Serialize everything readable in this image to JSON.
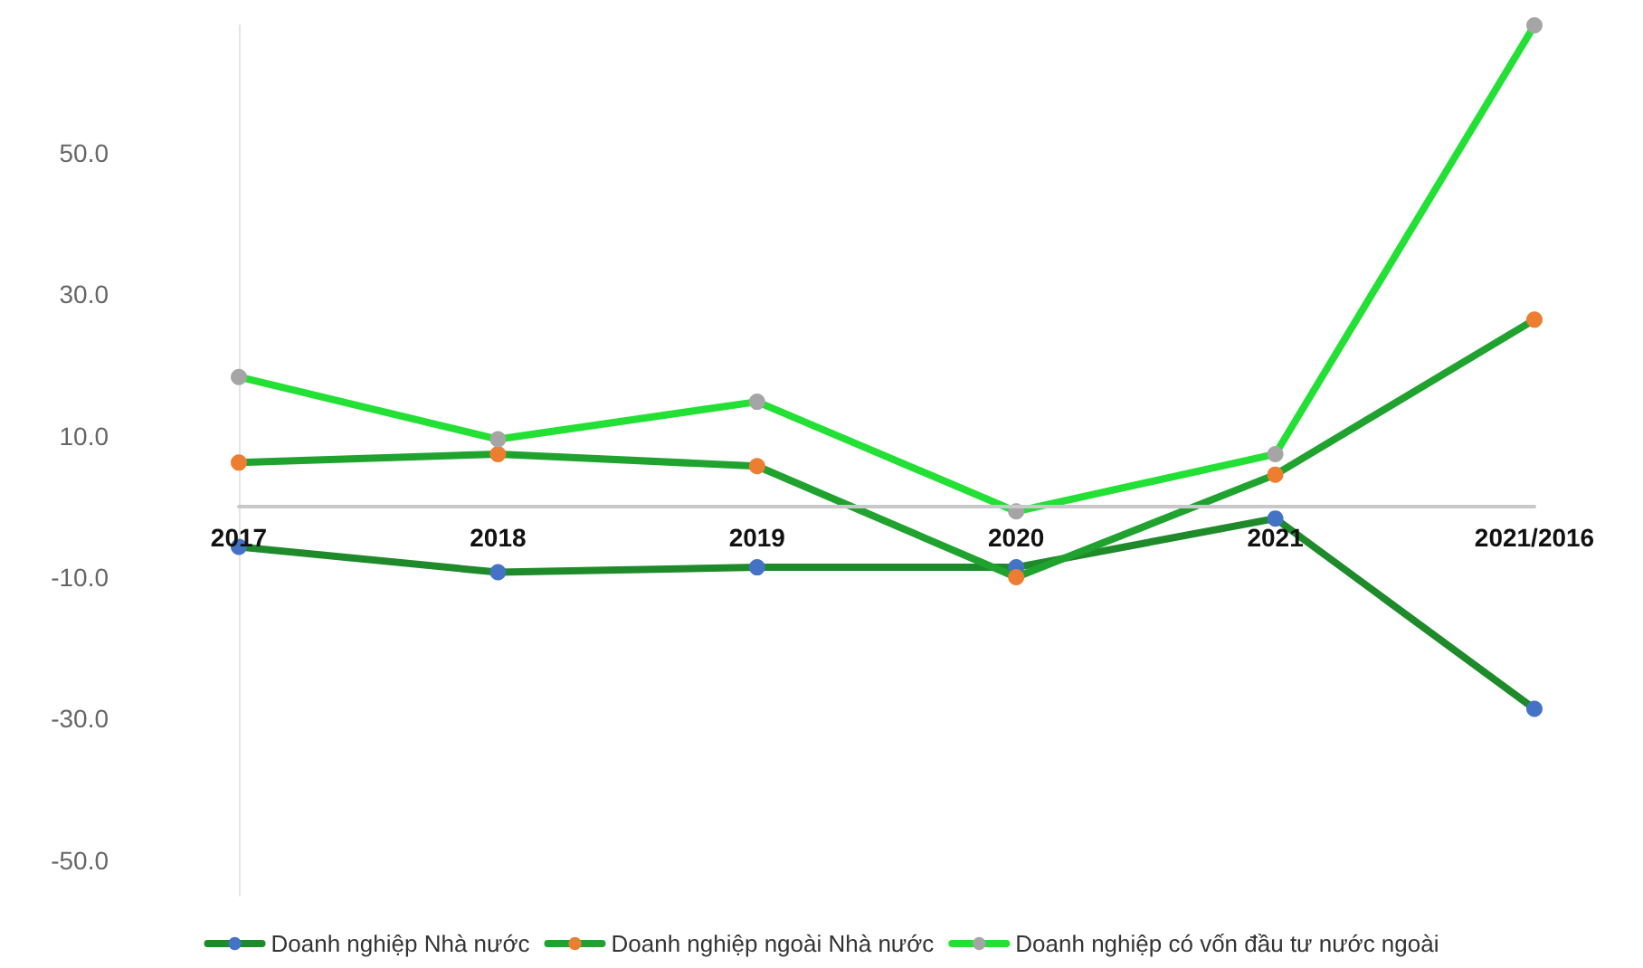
{
  "chart_data": {
    "type": "line",
    "categories": [
      "2017",
      "2018",
      "2019",
      "2020",
      "2021",
      "2021/2016"
    ],
    "series": [
      {
        "name": "Doanh nghiệp Nhà nước",
        "color": "#1e8a2a",
        "values": [
          -5.7,
          -9.3,
          -8.6,
          -8.6,
          -1.7,
          -28.6
        ]
      },
      {
        "name": "Doanh nghiệp ngoài Nhà nước",
        "color": "#1fa32e",
        "values": [
          6.2,
          7.4,
          5.7,
          -10,
          4.5,
          26.4
        ]
      },
      {
        "name": "Doanh nghiệp có vốn đầu tư nước ngoài",
        "color": "#22e034",
        "values": [
          18.3,
          9.5,
          14.8,
          -0.7,
          7.4,
          68
        ]
      }
    ],
    "ylim": [
      -55,
      68
    ],
    "yticks": [
      {
        "value": -50,
        "label": "-50.0"
      },
      {
        "value": -30,
        "label": "-30.0"
      },
      {
        "value": -10,
        "label": "-10.0"
      },
      {
        "value": 10,
        "label": "10.0"
      },
      {
        "value": 30,
        "label": "30.0"
      },
      {
        "value": 50,
        "label": "50.0"
      }
    ],
    "grid": false,
    "legend": "bottom",
    "marker": "circle",
    "line_style": "solid"
  }
}
